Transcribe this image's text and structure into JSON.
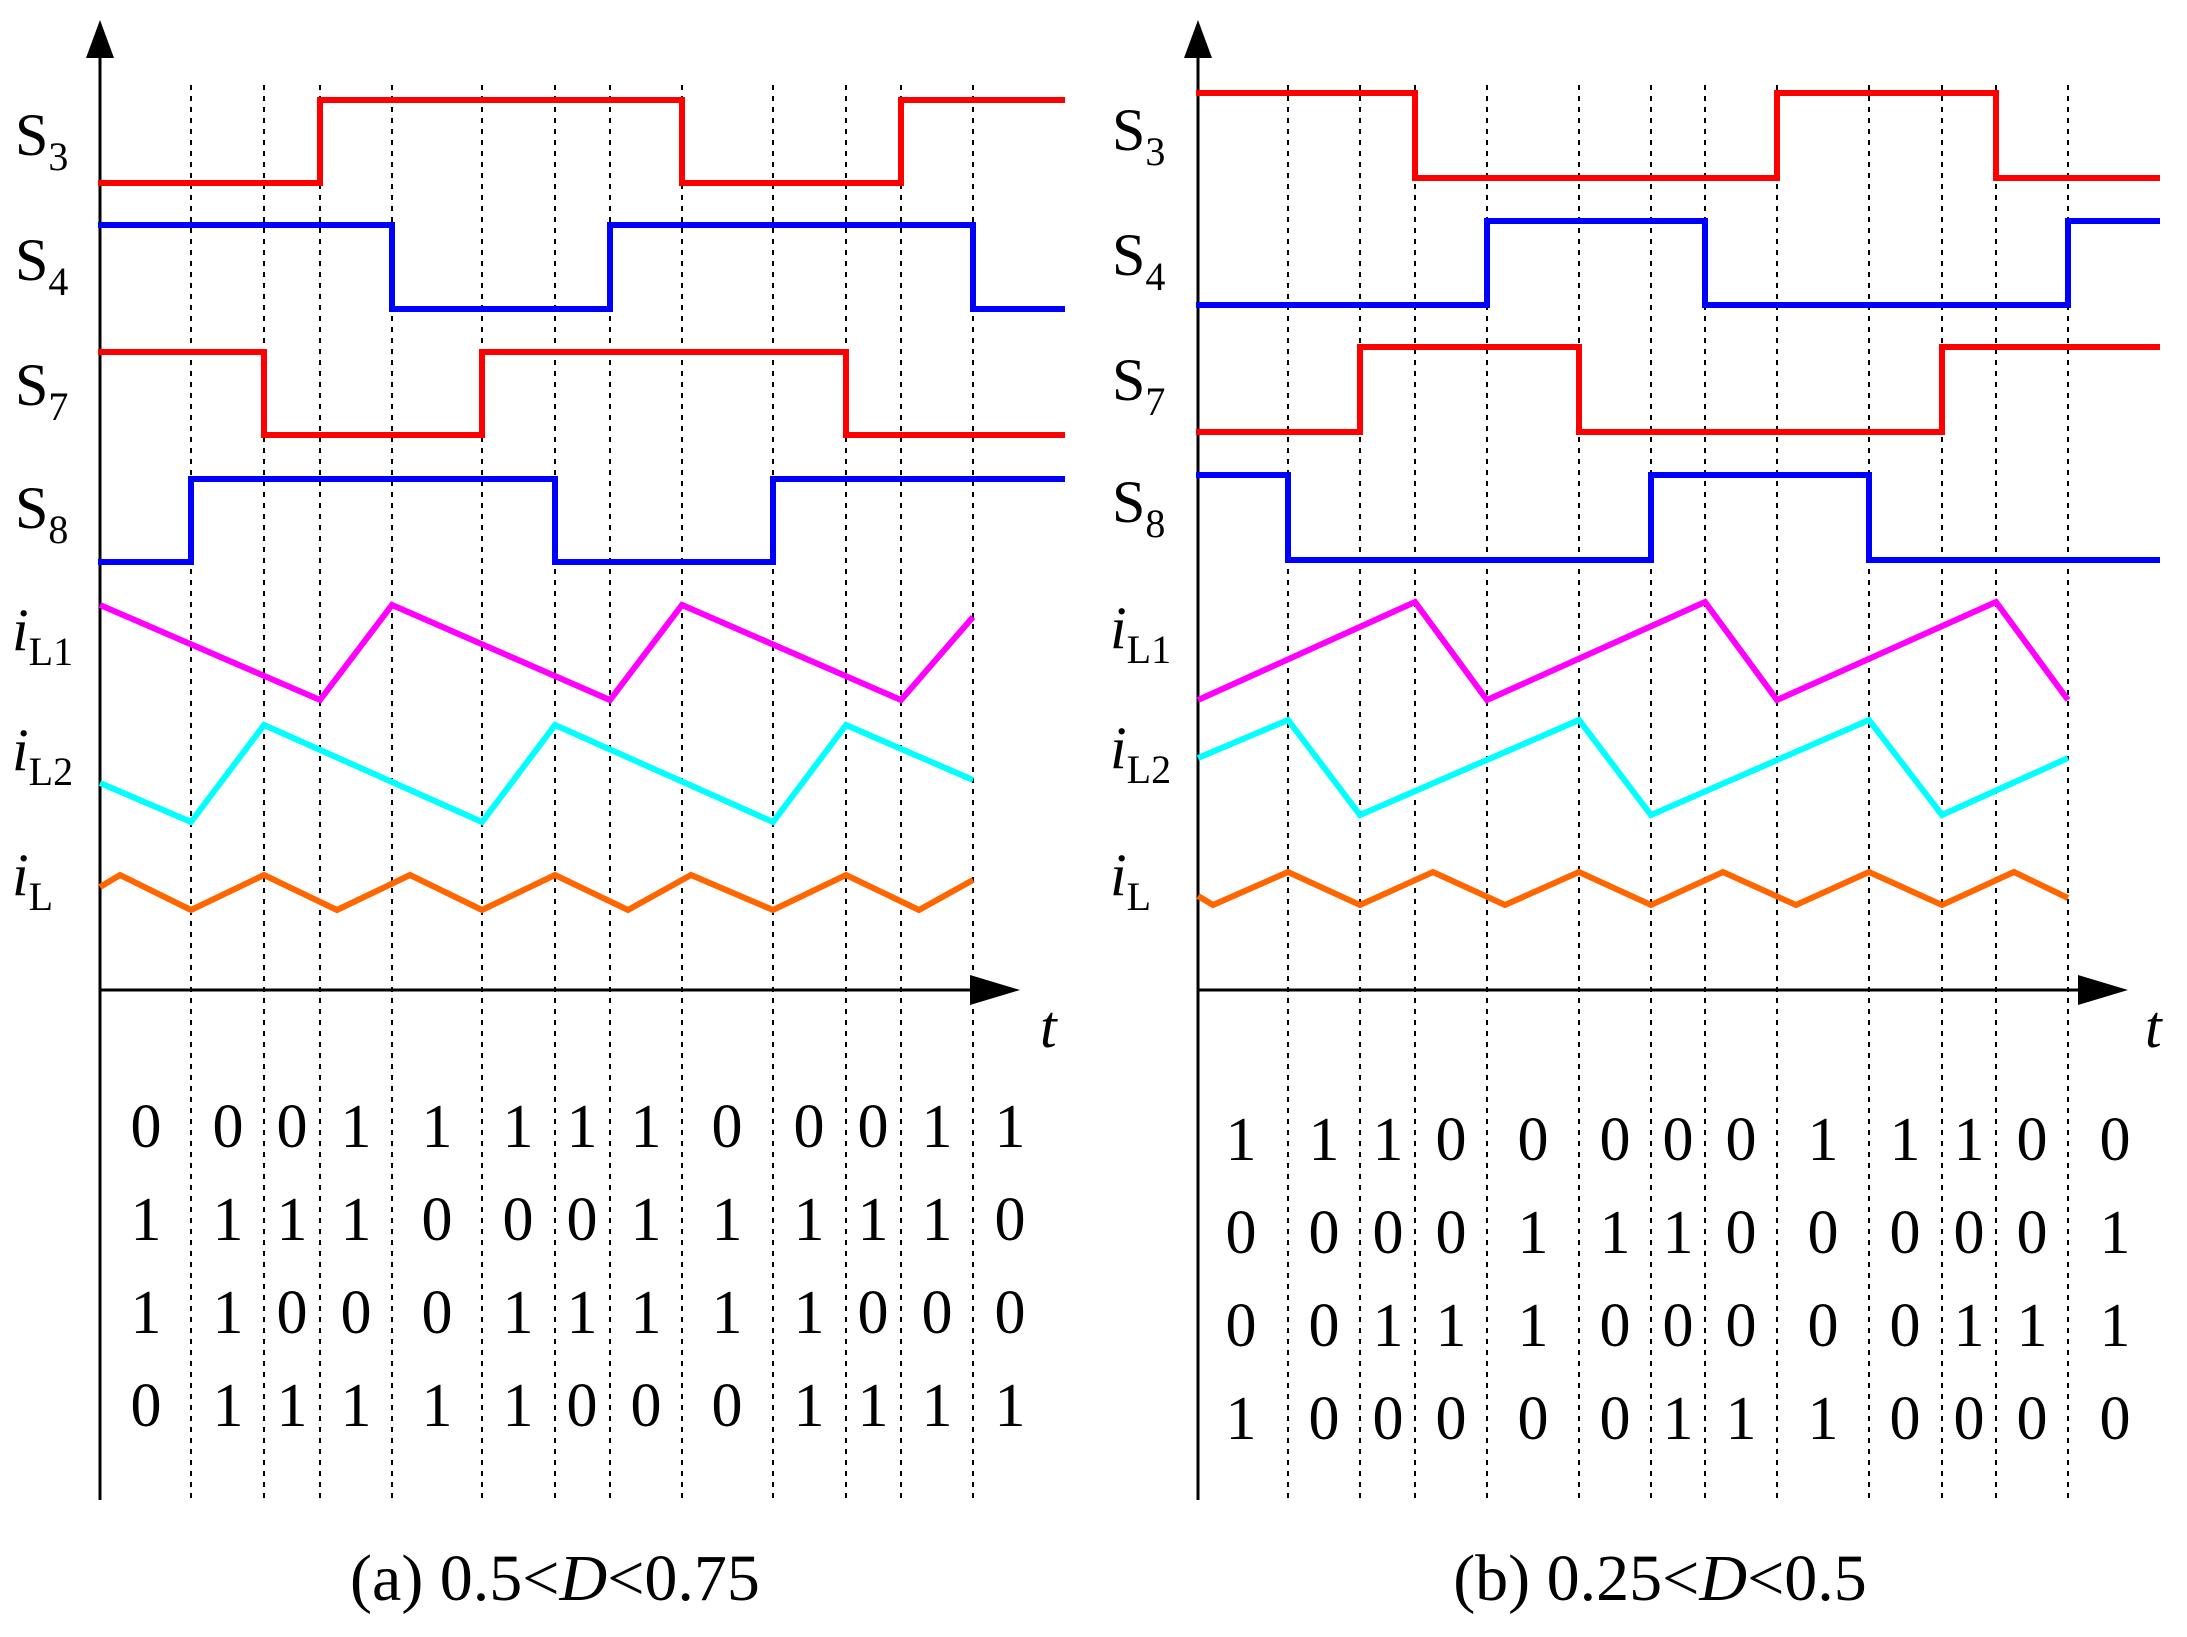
{
  "colors": {
    "S3": "#ff0000",
    "S4": "#0000ff",
    "S7": "#ff0000",
    "S8": "#0000ff",
    "iL1": "#ff00ff",
    "iL2": "#00ffff",
    "iL": "#ff6600"
  },
  "axis_label": "t",
  "panels": [
    {
      "id": "a",
      "caption_prefix": "(a) 0.5<",
      "caption_var": "D",
      "caption_suffix": "<0.75",
      "rows": [
        {
          "key": "S3",
          "main": "S",
          "sub": "3"
        },
        {
          "key": "S4",
          "main": "S",
          "sub": "4"
        },
        {
          "key": "S7",
          "main": "S",
          "sub": "7"
        },
        {
          "key": "S8",
          "main": "S",
          "sub": "8"
        },
        {
          "key": "iL1",
          "main": "i",
          "sub": "L1"
        },
        {
          "key": "iL2",
          "main": "i",
          "sub": "L2"
        },
        {
          "key": "iL",
          "main": "i",
          "sub": "L"
        }
      ],
      "bits": [
        [
          "0",
          "0",
          "0",
          "1",
          "1",
          "1",
          "1",
          "1",
          "0",
          "0",
          "0",
          "1",
          "1"
        ],
        [
          "1",
          "1",
          "1",
          "1",
          "0",
          "0",
          "0",
          "1",
          "1",
          "1",
          "1",
          "1",
          "0"
        ],
        [
          "1",
          "1",
          "0",
          "0",
          "0",
          "1",
          "1",
          "1",
          "1",
          "1",
          "0",
          "0",
          "0"
        ],
        [
          "0",
          "1",
          "1",
          "1",
          "1",
          "1",
          "0",
          "0",
          "0",
          "1",
          "1",
          "1",
          "1"
        ]
      ]
    },
    {
      "id": "b",
      "caption_prefix": "(b) 0.25<",
      "caption_var": "D",
      "caption_suffix": "<0.5",
      "rows": [
        {
          "key": "S3",
          "main": "S",
          "sub": "3"
        },
        {
          "key": "S4",
          "main": "S",
          "sub": "4"
        },
        {
          "key": "S7",
          "main": "S",
          "sub": "7"
        },
        {
          "key": "S8",
          "main": "S",
          "sub": "8"
        },
        {
          "key": "iL1",
          "main": "i",
          "sub": "L1"
        },
        {
          "key": "iL2",
          "main": "i",
          "sub": "L2"
        },
        {
          "key": "iL",
          "main": "i",
          "sub": "L"
        }
      ],
      "bits": [
        [
          "1",
          "1",
          "1",
          "0",
          "0",
          "0",
          "0",
          "0",
          "1",
          "1",
          "1",
          "0",
          "0"
        ],
        [
          "0",
          "0",
          "0",
          "0",
          "1",
          "1",
          "1",
          "0",
          "0",
          "0",
          "0",
          "0",
          "1"
        ],
        [
          "0",
          "0",
          "1",
          "1",
          "1",
          "0",
          "0",
          "0",
          "0",
          "0",
          "1",
          "1",
          "1"
        ],
        [
          "1",
          "0",
          "0",
          "0",
          "0",
          "0",
          "1",
          "1",
          "1",
          "0",
          "0",
          "0",
          "0"
        ]
      ]
    }
  ]
}
